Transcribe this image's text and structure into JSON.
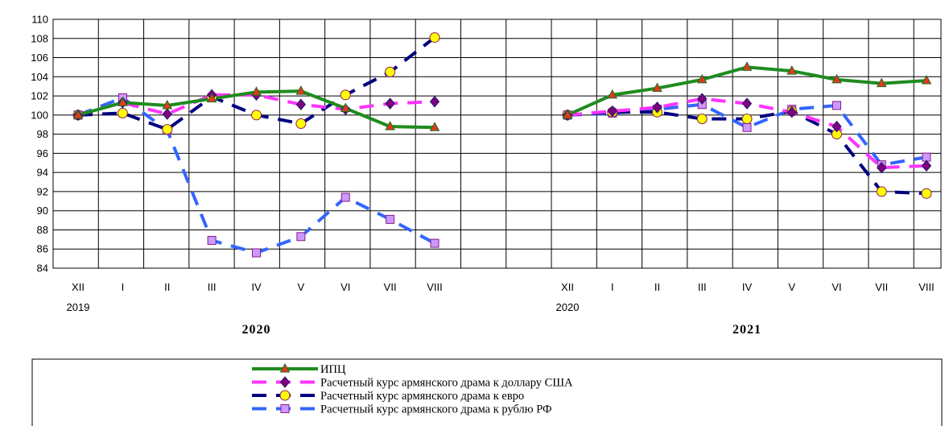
{
  "chart_data": {
    "type": "line",
    "ylim": [
      84,
      110
    ],
    "yticks": [
      84,
      86,
      88,
      90,
      92,
      94,
      96,
      98,
      100,
      102,
      104,
      106,
      108,
      110
    ],
    "categories": [
      "XII",
      "I",
      "II",
      "III",
      "IV",
      "V",
      "VI",
      "VII",
      "VIII"
    ],
    "period_start_labels": [
      "2019",
      "2020"
    ],
    "panel_titles": [
      "2020",
      "2021"
    ],
    "series": [
      {
        "name": "ИПЦ",
        "color": "#1e8c1e",
        "dash": "solid",
        "marker": "triangle",
        "marker_color": "#e03a1e",
        "values": [
          [
            100.0,
            101.3,
            101.0,
            101.7,
            102.4,
            102.5,
            100.7,
            98.8,
            98.7
          ],
          [
            100.0,
            102.1,
            102.8,
            103.7,
            105.0,
            104.6,
            103.7,
            103.3,
            103.6
          ]
        ]
      },
      {
        "name": "Расчетный курс армянского драма к доллару США",
        "color": "#ff33ff",
        "dash": "long-dash",
        "marker": "diamond",
        "marker_color": "#800080",
        "values": [
          [
            100.0,
            101.3,
            100.1,
            102.1,
            102.1,
            101.1,
            100.6,
            101.2,
            101.4
          ],
          [
            100.0,
            100.4,
            100.8,
            101.7,
            101.2,
            100.3,
            98.8,
            94.5,
            94.7
          ]
        ]
      },
      {
        "name": "Расчетный курс армянского драма к евро",
        "color": "#000080",
        "dash": "long-dash",
        "marker": "circle",
        "marker_color": "#ffff00",
        "values": [
          [
            100.0,
            100.2,
            98.5,
            101.9,
            100.0,
            99.1,
            102.1,
            104.5,
            108.1
          ],
          [
            100.0,
            100.3,
            100.3,
            99.6,
            99.6,
            100.4,
            98.0,
            92.0,
            91.8
          ]
        ]
      },
      {
        "name": "Расчетный курс армянского драма к рублю РФ",
        "color": "#3366ff",
        "dash": "long-dash",
        "marker": "square",
        "marker_color": "#cc99ff",
        "values": [
          [
            100.0,
            101.8,
            98.4,
            86.9,
            85.6,
            87.3,
            91.4,
            89.1,
            86.6
          ],
          [
            100.0,
            100.2,
            100.6,
            101.1,
            98.7,
            100.6,
            101.0,
            94.8,
            95.6
          ]
        ]
      }
    ],
    "grid": true,
    "legend_position": "bottom"
  }
}
